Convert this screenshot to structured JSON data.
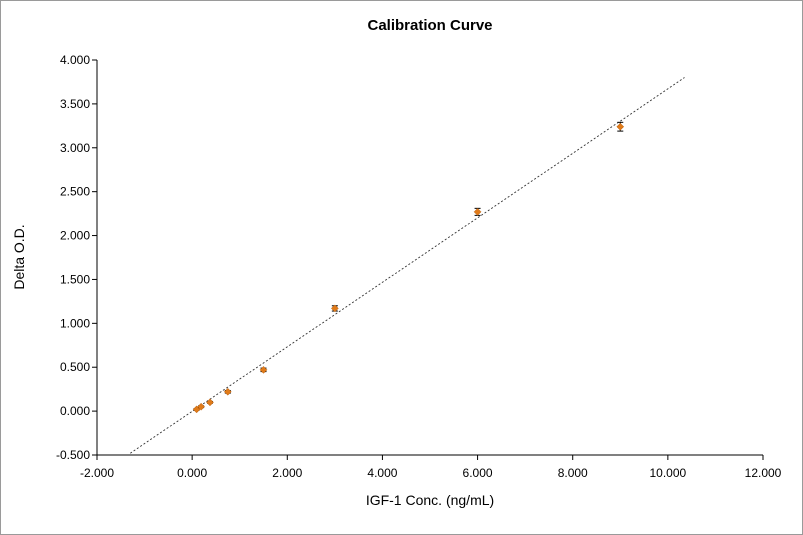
{
  "chart_data": {
    "type": "scatter",
    "title": "Calibration Curve",
    "xlabel": "IGF-1 Conc. (ng/mL)",
    "ylabel": "Delta O.D.",
    "xlim": [
      -2,
      12
    ],
    "ylim": [
      -0.5,
      4
    ],
    "x_ticks": [
      "-2.000",
      "0.000",
      "2.000",
      "4.000",
      "6.000",
      "8.000",
      "10.000",
      "12.000"
    ],
    "y_ticks": [
      "-0.500",
      "0.000",
      "0.500",
      "1.000",
      "1.500",
      "2.000",
      "2.500",
      "3.000",
      "3.500",
      "4.000"
    ],
    "grid": false,
    "legend": "none",
    "points_color": "#e07b1a",
    "errorbar_color": "#000000",
    "fit_color": "#333333",
    "points": [
      {
        "x": 0.094,
        "y": 0.02,
        "err": 0.01
      },
      {
        "x": 0.188,
        "y": 0.05,
        "err": 0.01
      },
      {
        "x": 0.375,
        "y": 0.1,
        "err": 0.01
      },
      {
        "x": 0.75,
        "y": 0.22,
        "err": 0.015
      },
      {
        "x": 1.5,
        "y": 0.47,
        "err": 0.02
      },
      {
        "x": 3.0,
        "y": 1.17,
        "err": 0.03
      },
      {
        "x": 6.0,
        "y": 2.27,
        "err": 0.04
      },
      {
        "x": 9.0,
        "y": 3.24,
        "err": 0.05
      }
    ],
    "fit_line": {
      "x1": -1.3,
      "y1": -0.48,
      "x2": 10.35,
      "y2": 3.8
    }
  }
}
